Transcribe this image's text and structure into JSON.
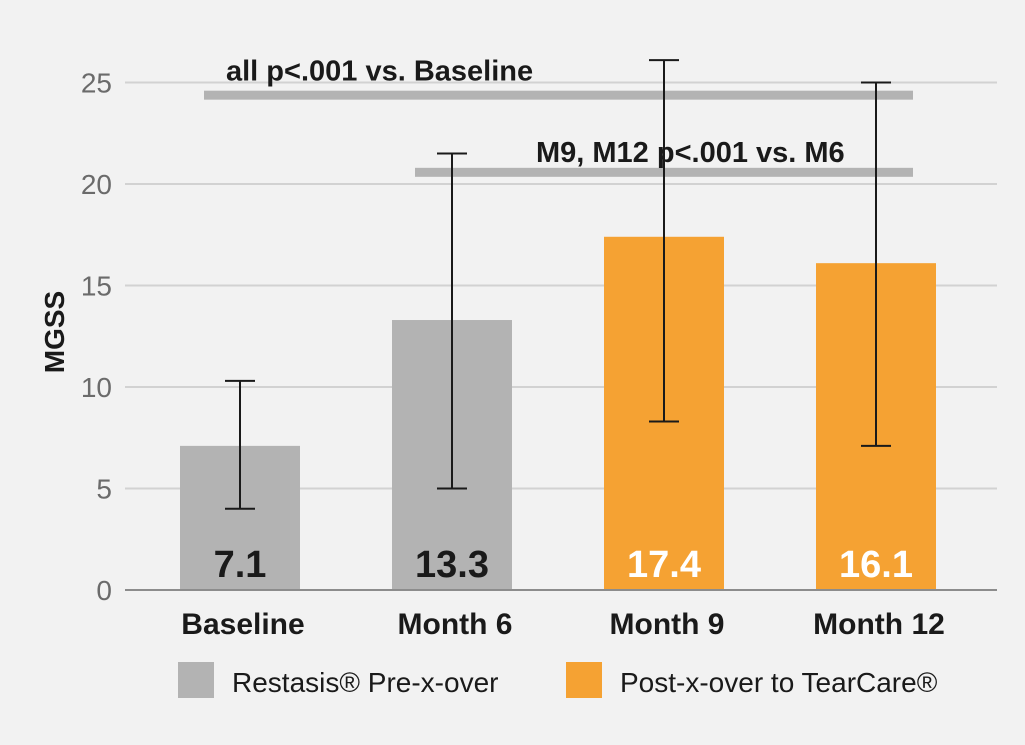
{
  "chart_data": {
    "type": "bar",
    "ylabel": "MGSS",
    "xlabel": "",
    "ylim": [
      0,
      26
    ],
    "yticks": [
      "0",
      "5",
      "10",
      "15",
      "20",
      "25"
    ],
    "grid": true,
    "categories": [
      "Baseline",
      "Month 6",
      "Month 9",
      "Month 12"
    ],
    "values": [
      7.1,
      13.3,
      17.4,
      16.1
    ],
    "value_labels": [
      "7.1",
      "13.3",
      "17.4",
      "16.1"
    ],
    "error_bars": [
      {
        "low": 4.0,
        "high": 10.3
      },
      {
        "low": 5.0,
        "high": 21.5
      },
      {
        "low": 8.3,
        "high": 26.1
      },
      {
        "low": 7.1,
        "high": 25.0
      }
    ],
    "bar_series_index": [
      0,
      0,
      1,
      1
    ],
    "series": [
      {
        "name": "Restasis® Pre-x-over",
        "color": "#b3b3b3",
        "value_label_color": "#1a1a1a"
      },
      {
        "name": "Post-x-over to TearCare®",
        "color": "#f5a233",
        "value_label_color": "#ffffff"
      }
    ],
    "annotations": [
      {
        "text": "all p<.001 vs. Baseline",
        "from": "Baseline",
        "to": "Month 12",
        "y": 24.4
      },
      {
        "text": "M9, M12 p<.001 vs. M6",
        "from": "Month 6",
        "to": "Month 12",
        "y": 20.6
      }
    ],
    "legend_position": "bottom"
  }
}
